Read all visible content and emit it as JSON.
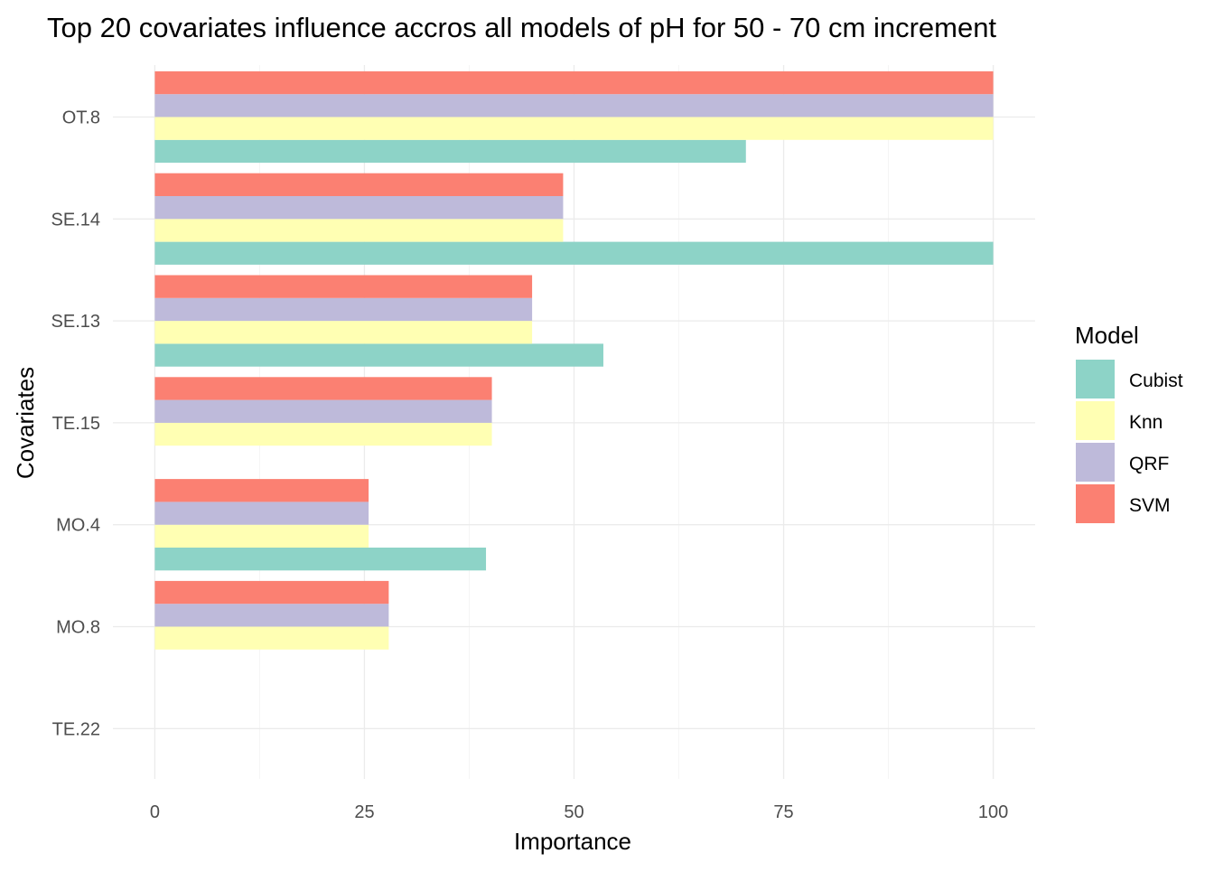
{
  "chart_data": {
    "type": "bar",
    "orientation": "horizontal",
    "title": "Top 20 covariates influence accros all models of pH for 50 - 70 cm increment",
    "xlabel": "Importance",
    "ylabel": "Covariates",
    "xlim": [
      -5,
      105
    ],
    "x_ticks": [
      "0",
      "25",
      "50",
      "75",
      "100"
    ],
    "x_tick_values": [
      0,
      25,
      50,
      75,
      100
    ],
    "grid": true,
    "legend_position": "right",
    "legend_title": "Model",
    "categories": [
      "OT.8",
      "SE.14",
      "SE.13",
      "TE.15",
      "MO.4",
      "MO.8",
      "TE.22"
    ],
    "series": [
      {
        "name": "Cubist",
        "color": "#8DD3C7",
        "values": [
          70.5,
          100,
          53.5,
          0,
          39.5,
          0,
          0
        ]
      },
      {
        "name": "Knn",
        "color": "#FFFFB3",
        "values": [
          100,
          48.7,
          45.0,
          40.2,
          25.5,
          27.9,
          0
        ]
      },
      {
        "name": "QRF",
        "color": "#BEBADA",
        "values": [
          100,
          48.7,
          45.0,
          40.2,
          25.5,
          27.9,
          0
        ]
      },
      {
        "name": "SVM",
        "color": "#FB8072",
        "values": [
          100,
          48.7,
          45.0,
          40.2,
          25.5,
          27.9,
          0
        ]
      }
    ]
  }
}
